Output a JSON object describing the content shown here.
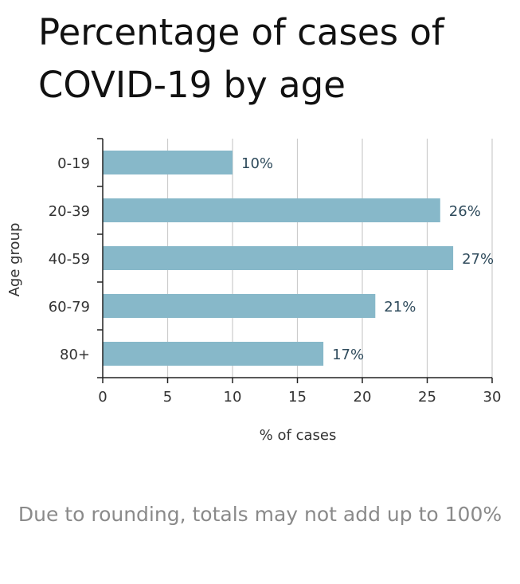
{
  "chart_data": {
    "type": "bar",
    "orientation": "horizontal",
    "title": "Percentage of cases of COVID-19 by age",
    "categories": [
      "0-19",
      "20-39",
      "40-59",
      "60-79",
      "80+"
    ],
    "values": [
      10,
      26,
      27,
      21,
      17
    ],
    "value_labels": [
      "10%",
      "26%",
      "27%",
      "21%",
      "17%"
    ],
    "xlabel": "% of cases",
    "ylabel": "Age group",
    "xlim": [
      0,
      30
    ],
    "xticks": [
      "0",
      "5",
      "10",
      "15",
      "20",
      "25",
      "30"
    ],
    "grid": "vertical",
    "bar_color": "#87b8c9",
    "label_color": "#2f4b5c"
  },
  "footnote": "Due to rounding, totals may not add up to 100%"
}
